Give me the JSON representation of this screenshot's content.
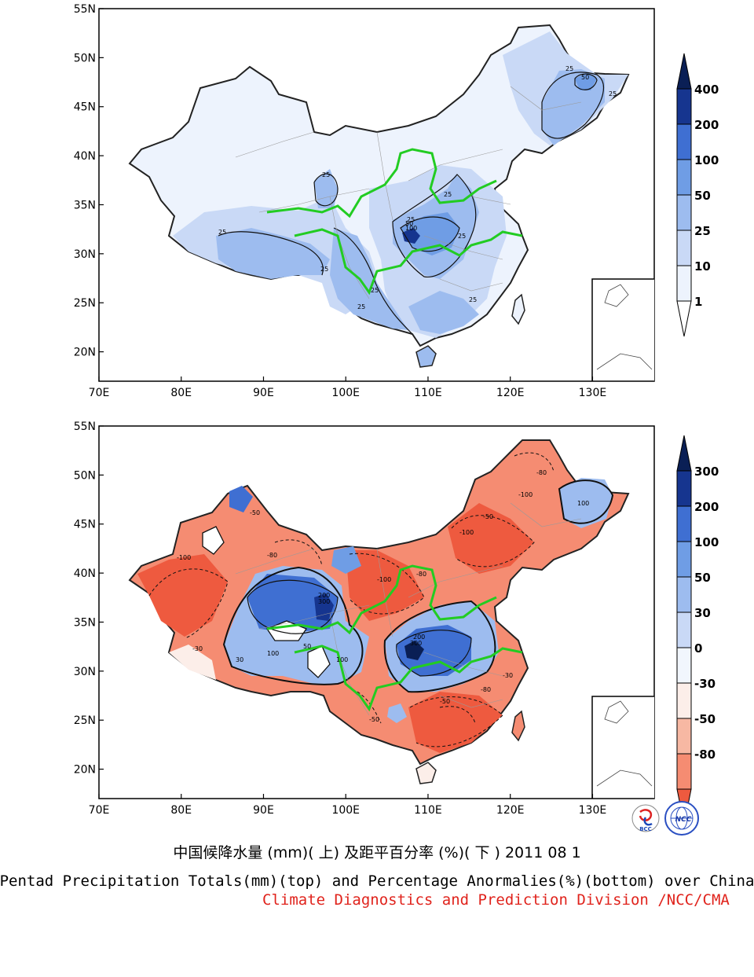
{
  "top_panel": {
    "lat_labels": [
      "55N",
      "50N",
      "45N",
      "40N",
      "35N",
      "30N",
      "25N",
      "20N"
    ],
    "lon_labels": [
      "70E",
      "80E",
      "90E",
      "100E",
      "110E",
      "120E",
      "130E"
    ],
    "colorbar_labels": [
      "400",
      "200",
      "100",
      "50",
      "25",
      "10",
      "1"
    ],
    "contour_labels": [
      "25",
      "25",
      "25",
      "50",
      "100",
      "25",
      "25",
      "25",
      "25",
      "25",
      "25",
      "25",
      "50",
      "25"
    ]
  },
  "bottom_panel": {
    "lat_labels": [
      "55N",
      "50N",
      "45N",
      "40N",
      "35N",
      "30N",
      "25N",
      "20N"
    ],
    "lon_labels": [
      "70E",
      "80E",
      "90E",
      "100E",
      "110E",
      "120E",
      "130E"
    ],
    "colorbar_labels": [
      "300",
      "200",
      "100",
      "50",
      "30",
      "0",
      "-30",
      "-50",
      "-80"
    ],
    "contour_labels": [
      "-100",
      "-80",
      "-50",
      "-30",
      "100",
      "200",
      "300",
      "100",
      "200",
      "300",
      "50",
      "30",
      "-100",
      "-80",
      "-50",
      "100",
      "-100",
      "-80",
      "-100",
      "-50",
      "-30",
      "-80",
      "-50"
    ]
  },
  "colors": {
    "precip_levels": [
      "#ffffff",
      "#edf3fd",
      "#c9d9f6",
      "#9dbcef",
      "#6f9de5",
      "#3f6fd2",
      "#16358f",
      "#0a1f55"
    ],
    "anom_neg": [
      "#fceee9",
      "#f7b8a3",
      "#f58c72",
      "#ee5a3f"
    ],
    "anom_pos": [
      "#f1f6fd",
      "#c9d9f6",
      "#9dbcef",
      "#6f9de5",
      "#3f6fd2",
      "#16358f",
      "#0a1f55"
    ],
    "river": "#22cc22",
    "credit": "#e0231c"
  },
  "logos": [
    "BCC",
    "NCC"
  ],
  "titles": {
    "chinese": "中国候降水量 (mm)( 上) 及距平百分率 (%)( 下 ) 2011 08 1",
    "english": "Pentad Precipitation Totals(mm)(top) and Percentage Anormalies(%)(bottom) over China",
    "credit": "Climate Diagnostics and Prediction Division /NCC/CMA"
  }
}
